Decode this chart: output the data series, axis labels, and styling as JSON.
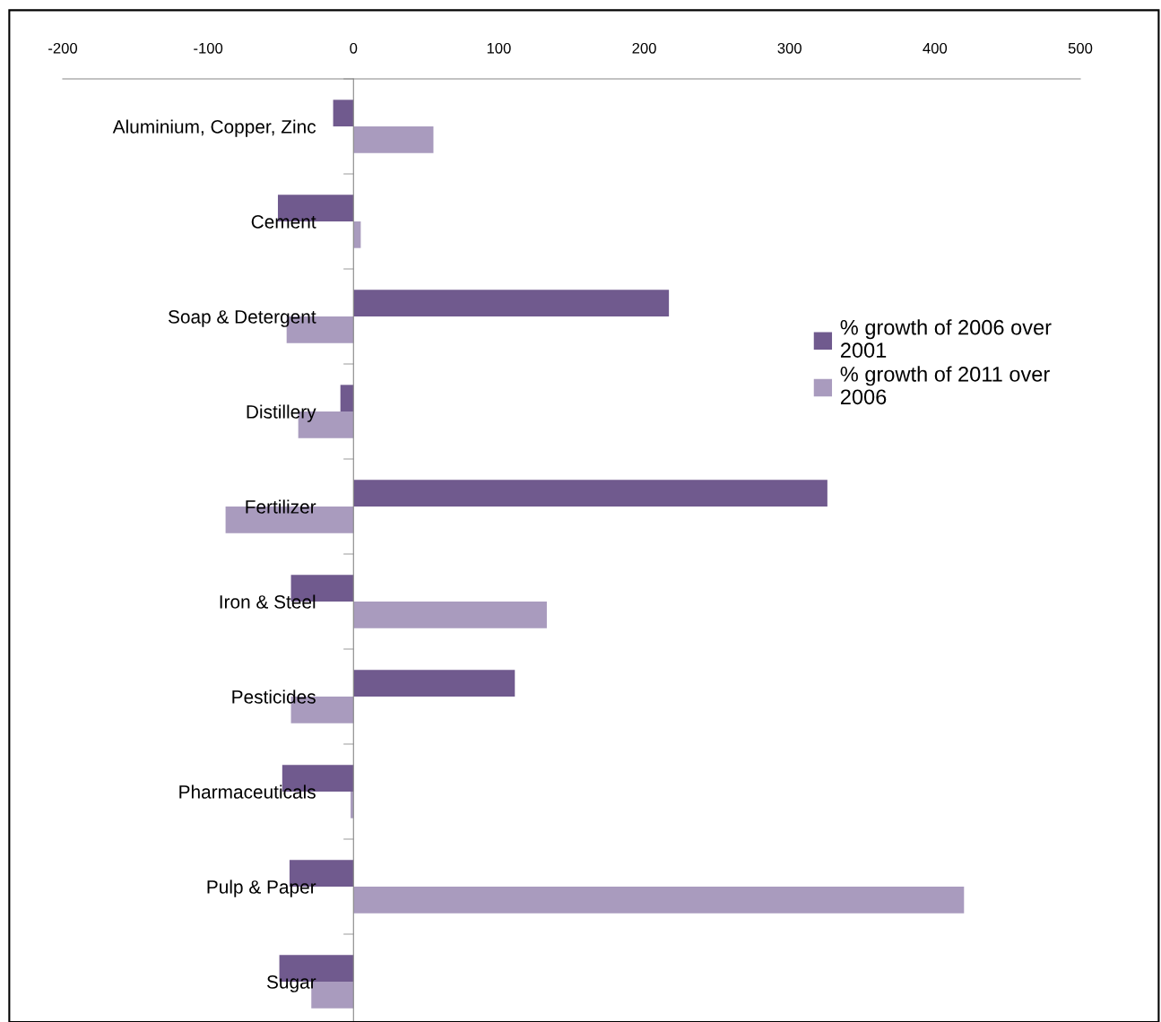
{
  "chart_data": {
    "type": "bar",
    "orientation": "horizontal",
    "categories": [
      "Aluminium, Copper, Zinc",
      "Cement",
      "Soap & Detergent",
      "Distillery",
      "Fertilizer",
      "Iron & Steel",
      "Pesticides",
      "Pharmaceuticals",
      "Pulp & Paper",
      "Sugar"
    ],
    "series": [
      {
        "name": "% growth of 2006 over 2001",
        "color": "#705a8e",
        "values": [
          -14,
          -52,
          217,
          -9,
          326,
          -43,
          111,
          -49,
          -44,
          -51
        ]
      },
      {
        "name": "% growth of 2011 over 2006",
        "color": "#a99bbe",
        "values": [
          55,
          5,
          -46,
          -38,
          -88,
          133,
          -43,
          -2,
          420,
          -29
        ]
      }
    ],
    "xlim": [
      -200,
      500
    ],
    "xticks": [
      -200,
      -100,
      0,
      100,
      200,
      300,
      400,
      500
    ],
    "grid": false,
    "legend": "right"
  }
}
